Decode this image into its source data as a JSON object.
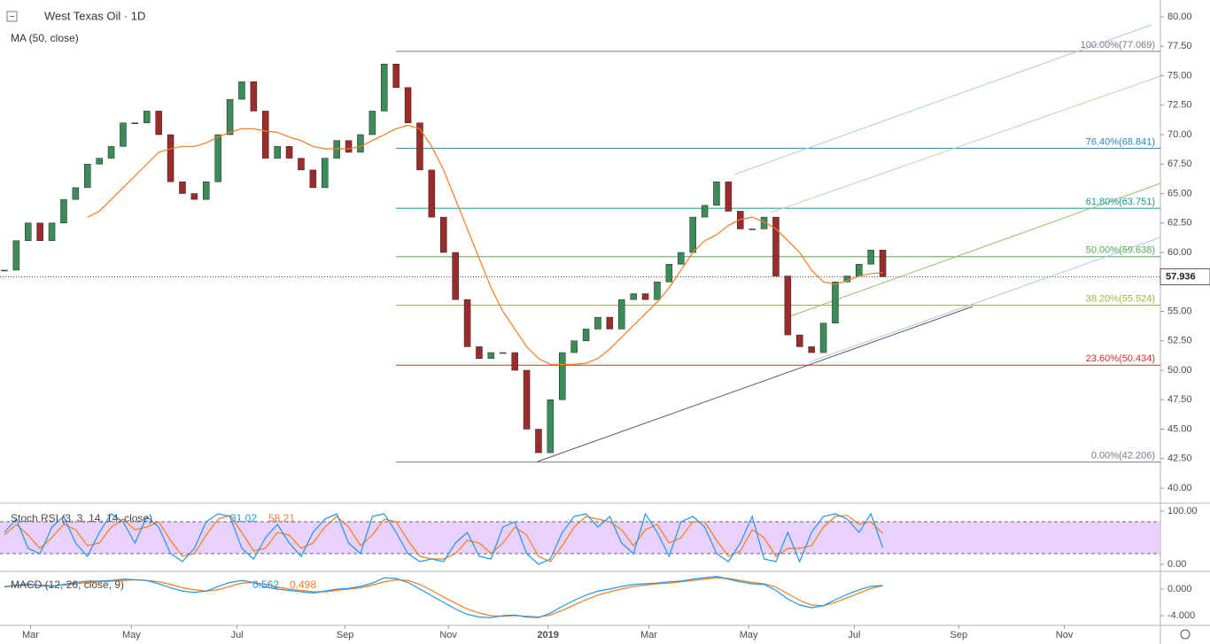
{
  "chart_data": {
    "type": "candlestick",
    "title": "West Texas Oil · 1D",
    "indicator": "MA (50, close)",
    "xlim": [
      -0.37,
      97.39
    ],
    "xticks": [
      {
        "value": 2.2,
        "label": "Mar"
      },
      {
        "value": 10.7,
        "label": "May"
      },
      {
        "value": 19.6,
        "label": "Jul"
      },
      {
        "value": 28.7,
        "label": "Sep"
      },
      {
        "value": 37.4,
        "label": "Nov"
      },
      {
        "value": 45.8,
        "label": "2019"
      },
      {
        "value": 54.3,
        "label": "Mar"
      },
      {
        "value": 62.7,
        "label": "May"
      },
      {
        "value": 71.6,
        "label": "Jul"
      },
      {
        "value": 80.4,
        "label": "Sep"
      },
      {
        "value": 89.3,
        "label": "Nov"
      }
    ],
    "ylim": [
      38.72,
      81.43
    ],
    "yticks": [
      {
        "value": 40,
        "label": "40.00"
      },
      {
        "value": 42.5,
        "label": "42.50"
      },
      {
        "value": 45,
        "label": "45.00"
      },
      {
        "value": 47.5,
        "label": "47.50"
      },
      {
        "value": 50,
        "label": "50.00"
      },
      {
        "value": 52.5,
        "label": "52.50"
      },
      {
        "value": 55,
        "label": "55.00"
      },
      {
        "value": 57.5,
        "label": "57.50"
      },
      {
        "value": 60,
        "label": "60.00"
      },
      {
        "value": 62.5,
        "label": "62.50"
      },
      {
        "value": 65,
        "label": "65.00"
      },
      {
        "value": 67.5,
        "label": "67.50"
      },
      {
        "value": 70,
        "label": "70.00"
      },
      {
        "value": 72.5,
        "label": "72.50"
      },
      {
        "value": 75,
        "label": "75.00"
      },
      {
        "value": 77.5,
        "label": "77.50"
      },
      {
        "value": 80,
        "label": "80.00"
      }
    ],
    "up_color": "#3c8c5a",
    "down_color": "#9c2b2b",
    "close": [
      58.5,
      61,
      62.5,
      61,
      62.5,
      64.5,
      65.5,
      67.5,
      68,
      69,
      71,
      71,
      72,
      70,
      66,
      65,
      64.5,
      66,
      70,
      73,
      74.5,
      72,
      68,
      69,
      68,
      67,
      65.5,
      68,
      69.5,
      68.5,
      70,
      72,
      76,
      74,
      71,
      67,
      63,
      60,
      56,
      52,
      51,
      51.5,
      51.5,
      50,
      45,
      43,
      47.5,
      51.5,
      52.5,
      53.5,
      54.5,
      53.5,
      56,
      56.5,
      56,
      57.5,
      59,
      60,
      63,
      64,
      66,
      63.5,
      62,
      62,
      63,
      58,
      53,
      52,
      51.5,
      54,
      57.5,
      58,
      59,
      60.2,
      57.936
    ],
    "ma": {
      "color": "#f57c20",
      "values": [
        null,
        null,
        null,
        null,
        null,
        null,
        null,
        63.0,
        63.5,
        64.5,
        65.5,
        66.5,
        67.5,
        68.5,
        68.8,
        69,
        69,
        69.3,
        69.8,
        70.2,
        70.5,
        70.5,
        70.3,
        70.2,
        69.8,
        69.5,
        69,
        68.8,
        68.8,
        68.8,
        69,
        69.5,
        70,
        70.5,
        70.8,
        70.5,
        69,
        67,
        64.5,
        62,
        59.5,
        57,
        55,
        53.5,
        52,
        51,
        50.5,
        50.5,
        50.5,
        50.6,
        51,
        51.8,
        52.8,
        53.8,
        54.8,
        55.8,
        57,
        58.5,
        60,
        61,
        61.5,
        62.3,
        62.8,
        63,
        62.6,
        62,
        61,
        60,
        58.5,
        57.5,
        57.3,
        57.6,
        58,
        58.2,
        58.3
      ]
    },
    "fib": [
      {
        "label": "100.00%(77.069)",
        "value": 77.069,
        "color": "#787b86"
      },
      {
        "label": "76.40%(68.841)",
        "value": 68.841,
        "color": "#2a86b8"
      },
      {
        "label": "61.80%(63.751)",
        "value": 63.751,
        "color": "#139a8c"
      },
      {
        "label": "50.00%(59.638)",
        "value": 59.638,
        "color": "#4caf50"
      },
      {
        "label": "38.20%(55.524)",
        "value": 55.524,
        "color": "#9ab83a"
      },
      {
        "label": "23.60%(50.434)",
        "value": 50.434,
        "color": "#d32f2f"
      },
      {
        "label": "0.00%(42.206)",
        "value": 42.206,
        "color": "#787b86"
      }
    ],
    "stoch_rsi": {
      "title": "Stoch RSI (3, 3, 14, 14, close)",
      "ylim": [
        -10,
        111.7
      ],
      "yticks": [
        {
          "value": 100,
          "label": "100.00"
        },
        {
          "value": 0,
          "label": "0.00"
        }
      ],
      "bands": [
        20,
        80
      ],
      "band_color": "#e6ccfa",
      "series": [
        {
          "color": "#2196f3",
          "values": [
            60,
            85,
            30,
            20,
            70,
            90,
            40,
            15,
            60,
            95,
            80,
            40,
            90,
            70,
            20,
            5,
            30,
            80,
            95,
            90,
            30,
            10,
            50,
            75,
            40,
            15,
            60,
            85,
            95,
            40,
            20,
            90,
            95,
            60,
            20,
            5,
            10,
            5,
            40,
            60,
            15,
            10,
            70,
            80,
            20,
            0,
            10,
            60,
            90,
            95,
            70,
            90,
            40,
            20,
            95,
            60,
            15,
            80,
            90,
            70,
            20,
            5,
            40,
            90,
            10,
            5,
            60,
            5,
            60,
            90,
            95,
            85,
            60,
            95,
            31.02
          ]
        },
        {
          "color": "#f57c20",
          "values": [
            55,
            75,
            55,
            30,
            50,
            75,
            65,
            35,
            40,
            70,
            85,
            65,
            70,
            80,
            45,
            15,
            20,
            55,
            85,
            92,
            60,
            25,
            30,
            60,
            55,
            30,
            40,
            70,
            90,
            70,
            35,
            55,
            85,
            80,
            45,
            15,
            10,
            10,
            20,
            45,
            40,
            20,
            40,
            70,
            55,
            15,
            5,
            35,
            70,
            90,
            85,
            80,
            65,
            35,
            65,
            75,
            40,
            50,
            80,
            80,
            45,
            15,
            25,
            65,
            50,
            15,
            30,
            30,
            35,
            70,
            90,
            92,
            75,
            80,
            58.21
          ]
        }
      ]
    },
    "macd": {
      "title": "MACD (12, 26, close, 9)",
      "ylim": [
        -5.33,
        2.4
      ],
      "yticks": [
        {
          "value": 0,
          "label": "0.000"
        },
        {
          "value": -4,
          "label": "-4.000"
        }
      ],
      "series": [
        {
          "color": "#2196f3",
          "values": [
            0.3,
            0.6,
            0.8,
            0.5,
            0.4,
            0.7,
            1.0,
            1.2,
            1.2,
            1.3,
            1.5,
            1.4,
            1.3,
            0.8,
            0.2,
            -0.3,
            -0.5,
            -0.3,
            0.4,
            1.0,
            1.3,
            1.0,
            0.3,
            0.0,
            -0.2,
            -0.4,
            -0.6,
            -0.3,
            0.0,
            0.1,
            0.4,
            0.9,
            1.7,
            1.6,
            1.0,
            0.0,
            -1.0,
            -2.0,
            -3.0,
            -3.8,
            -4.2,
            -4.3,
            -4.0,
            -3.9,
            -4.2,
            -4.3,
            -3.6,
            -2.6,
            -1.7,
            -0.9,
            -0.3,
            0.0,
            0.4,
            0.7,
            0.8,
            0.9,
            1.1,
            1.2,
            1.5,
            1.7,
            1.9,
            1.5,
            1.1,
            0.8,
            0.7,
            -0.2,
            -1.5,
            -2.4,
            -2.8,
            -2.5,
            -1.6,
            -0.8,
            -0.1,
            0.4,
            0.562
          ]
        },
        {
          "color": "#f57c20",
          "values": [
            0.4,
            0.5,
            0.6,
            0.6,
            0.5,
            0.6,
            0.8,
            1.0,
            1.1,
            1.2,
            1.3,
            1.4,
            1.3,
            1.1,
            0.7,
            0.2,
            -0.1,
            -0.3,
            -0.1,
            0.4,
            0.9,
            1.0,
            0.7,
            0.3,
            0.0,
            -0.2,
            -0.4,
            -0.4,
            -0.2,
            0.0,
            0.2,
            0.6,
            1.1,
            1.4,
            1.3,
            0.7,
            -0.2,
            -1.2,
            -2.1,
            -3.0,
            -3.6,
            -4.0,
            -4.1,
            -4.0,
            -4.1,
            -4.2,
            -3.9,
            -3.2,
            -2.4,
            -1.6,
            -0.9,
            -0.4,
            0.0,
            0.4,
            0.6,
            0.8,
            0.9,
            1.1,
            1.3,
            1.5,
            1.7,
            1.6,
            1.3,
            1.0,
            0.8,
            0.3,
            -0.7,
            -1.7,
            -2.4,
            -2.5,
            -2.0,
            -1.3,
            -0.6,
            0.1,
            0.498
          ]
        }
      ]
    }
  }
}
